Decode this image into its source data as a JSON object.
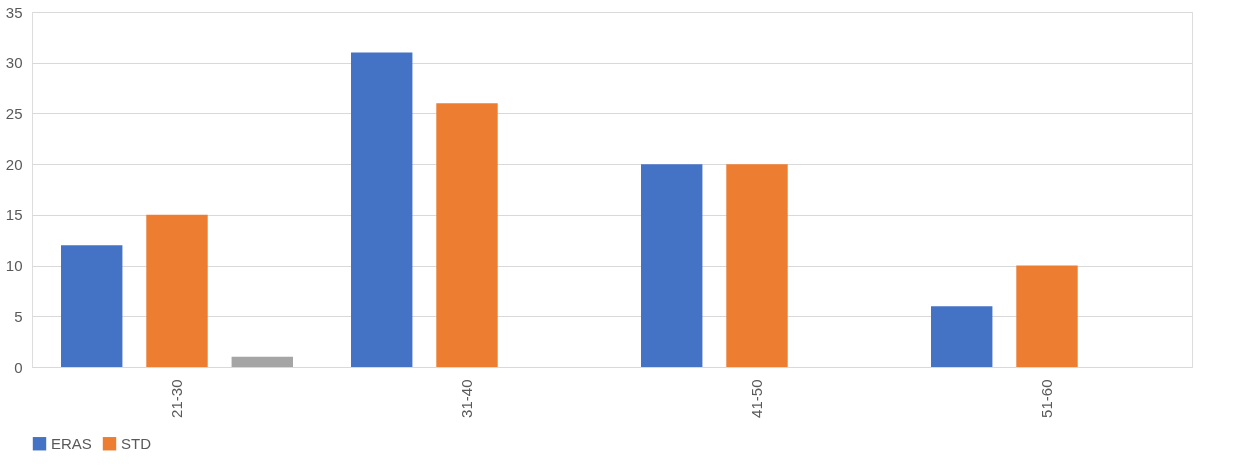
{
  "chart_data": {
    "type": "bar",
    "categories": [
      "21-30",
      "31-40",
      "41-50",
      "51-60"
    ],
    "series": [
      {
        "name": "ERAS",
        "color": "#4472c4",
        "values": [
          12,
          31,
          20,
          6
        ]
      },
      {
        "color": "#ed7d31",
        "name": "STD",
        "values": [
          15,
          26,
          20,
          10
        ]
      },
      {
        "color": "#a5a5a5",
        "values": [
          1,
          0,
          0,
          0
        ]
      }
    ],
    "ylim": [
      0,
      35
    ],
    "yticks": [
      0,
      5,
      10,
      15,
      20,
      25,
      30,
      35
    ],
    "grid": "y",
    "legend": "bottom"
  }
}
